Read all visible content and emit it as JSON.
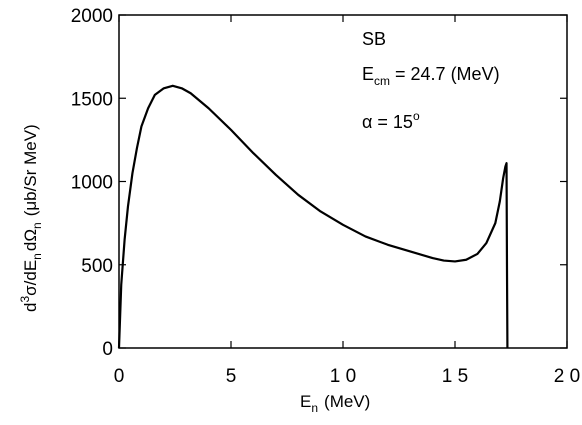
{
  "chart_data": {
    "type": "line",
    "xlim": [
      0,
      20
    ],
    "ylim": [
      0,
      2000
    ],
    "x_ticks": [
      0,
      5,
      10,
      15,
      20
    ],
    "y_ticks": [
      0,
      500,
      1000,
      1500,
      2000
    ],
    "x_tick_labels": [
      "0",
      "5",
      "1 0",
      "1 5",
      "2 0"
    ],
    "y_tick_labels": [
      "0",
      "500",
      "1000",
      "1500",
      "2000"
    ],
    "xlabel": {
      "main": "E",
      "sub": "n",
      "unit": "(MeV)"
    },
    "ylabel": {
      "sup": "3",
      "part1": "σ/dE",
      "sub1": "n",
      "part2": "dΩ",
      "sub2": "n",
      "unit": "(μb/Sr  MeV)",
      "prefix": "d"
    },
    "annotations": {
      "label": "SB",
      "ecm_main": "E",
      "ecm_sub": "cm",
      "ecm_value": " = 24.7  (MeV)",
      "alpha_text": "α  =  15",
      "alpha_sup": "o"
    },
    "grid": false,
    "series": [
      {
        "x": [
          0.0,
          0.1,
          0.25,
          0.4,
          0.6,
          0.8,
          1.0,
          1.3,
          1.6,
          2.0,
          2.4,
          2.8,
          3.2,
          4.0,
          5.0,
          6.0,
          7.0,
          8.0,
          9.0,
          10.0,
          11.0,
          12.0,
          13.0,
          14.0,
          14.5,
          15.0,
          15.5,
          16.0,
          16.4,
          16.8,
          17.0,
          17.15,
          17.25,
          17.3,
          17.32,
          17.34
        ],
        "y": [
          0,
          380,
          650,
          850,
          1050,
          1200,
          1330,
          1440,
          1520,
          1560,
          1575,
          1560,
          1530,
          1440,
          1310,
          1170,
          1040,
          920,
          820,
          740,
          670,
          620,
          580,
          540,
          525,
          520,
          530,
          565,
          630,
          750,
          880,
          1020,
          1090,
          1110,
          500,
          0
        ]
      }
    ]
  }
}
